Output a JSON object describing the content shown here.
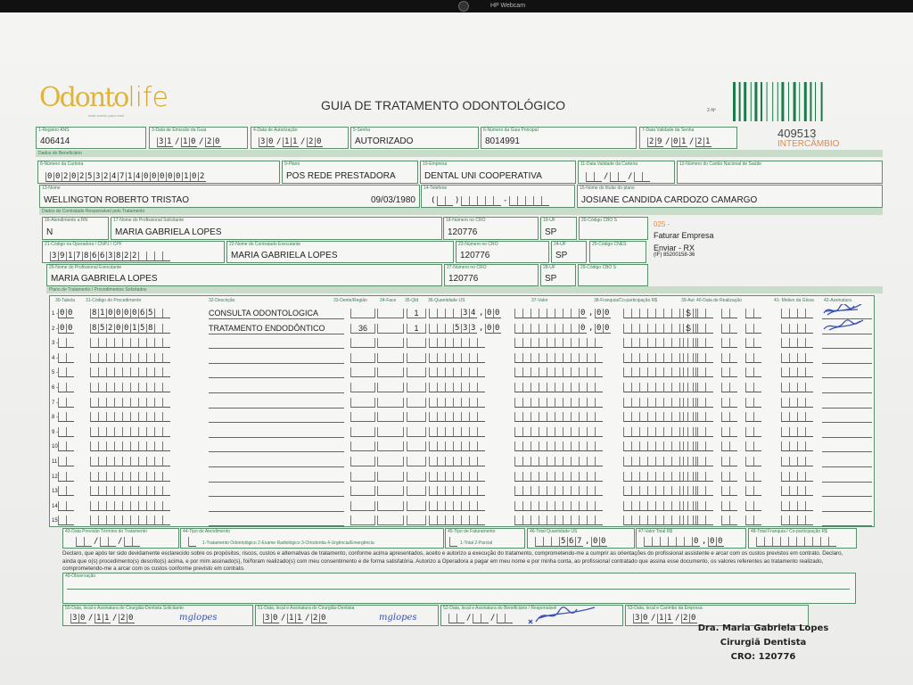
{
  "device": {
    "webcam_label": "HP Webcam"
  },
  "logo": {
    "text_main": "Odonto",
    "text_life": "life",
    "tagline": "mais sorriso para você"
  },
  "title": "GUIA DE TRATAMENTO ODONTOLÓGICO",
  "guide_number_label": "2-Nº",
  "guide_number": "409513",
  "intercambio": "INTERCÂMBIO",
  "colors": {
    "form_green": "#3b7a4f",
    "orange": "#e08a4a",
    "ink_blue": "#3a4fb5"
  },
  "fields": {
    "registro_ans": {
      "label": "1-Registro ANS",
      "value": "406414"
    },
    "data_emissao": {
      "label": "3-Data de Emissão da Guia",
      "value": "31/10/20"
    },
    "data_autorizacao": {
      "label": "4-Data de Autorização",
      "value": "30/11/20"
    },
    "senha": {
      "label": "5-Senha",
      "value": "AUTORIZADO"
    },
    "guia_principal": {
      "label": "6-Número da Guia Principal",
      "value": "8014991"
    },
    "validade_senha": {
      "label": "7-Data Validade da Senha",
      "value": "29/01/21"
    },
    "numero_carteira": {
      "label": "8-Número da Carteira",
      "value": "00202532471400000102"
    },
    "plano": {
      "label": "9-Plano",
      "value": "POS REDE PRESTADORA"
    },
    "empresa": {
      "label": "10-Empresa",
      "value": "DENTAL UNI  COOPERATIVA"
    },
    "validade_carteira": {
      "label": "11-Data Validade da Carteira",
      "value": "  /  /  "
    },
    "cns": {
      "label": "12-Número do Cartão Nacional de Saúde",
      "value": ""
    },
    "nome": {
      "label": "13-Nome",
      "value": "WELLINGTON ROBERTO TRISTAO",
      "birth": "09/03/1980"
    },
    "telefone": {
      "label": "14-Telefone",
      "value": "(  )     -     "
    },
    "titular": {
      "label": "15-Nome do titular do plano",
      "value": "JOSIANE CANDIDA CARDOZO CAMARGO"
    },
    "atendimento_rn": {
      "label": "16-Atendimento a RN",
      "value": "N"
    },
    "prof_solicitante": {
      "label": "17-Nome do Profissional Solicitante",
      "value": "MARIA GABRIELA LOPES"
    },
    "cro_18": {
      "label": "18-Número no CRO",
      "value": "120776"
    },
    "uf_19": {
      "label": "19-UF",
      "value": "SP"
    },
    "cbo_20": {
      "label": "20-Código CBO S",
      "value": ""
    },
    "codigo_operadora": {
      "label": "21-Código na Operadora / CNPJ / CPF",
      "value": "39178663822    "
    },
    "contratado_executante": {
      "label": "22-Nome do Contratado Executante",
      "value": "MARIA GABRIELA LOPES"
    },
    "cro_23": {
      "label": "23-Número no CRO",
      "value": "120776"
    },
    "uf_24": {
      "label": "24-UF",
      "value": "SP"
    },
    "cnes_25": {
      "label": "25-Código CNES",
      "value": ""
    },
    "prof_executante": {
      "label": "26-Nome do Profissional Executante",
      "value": "MARIA GABRIELA LOPES"
    },
    "cro_27": {
      "label": "27-Número no CRO",
      "value": "120776"
    },
    "uf_28": {
      "label": "28-UF",
      "value": "SP"
    },
    "cbo_29": {
      "label": "29-Código CBO S",
      "value": ""
    }
  },
  "bands": {
    "beneficiario": "Dados do Beneficiário",
    "contratado": "Dados do Contratado Responsável pelo Tratamento",
    "plano": "Plano de Tratamento / Procedimentos Solicitados"
  },
  "notes": {
    "code": "025 -",
    "line1": "Faturar Empresa",
    "line2": "Enviar - RX",
    "line3": "(IF) 85200158-36"
  },
  "table": {
    "headers": [
      "30-Tabela",
      "31-Código do Procedimento",
      "32-Descrição",
      "33-Dente/Região",
      "34-Face",
      "35-Qtd",
      "36-Quantidade US",
      "37-Valor",
      "38-Franquia/Co-participação R$",
      "39-Aut",
      "40-Data de Realização",
      "41- Motivo da Glosa",
      "42-Assinatura"
    ],
    "row_numbers": [
      "1 -",
      "2 -",
      "3 -",
      "4 -",
      "5 -",
      "6 -",
      "7 -",
      "8 -",
      "9 -",
      "10",
      "11",
      "12",
      "13",
      "14",
      "15"
    ],
    "rows": [
      {
        "tabela": "00",
        "codigo": "81000065",
        "descricao": "CONSULTA ODONTOLOGICA",
        "dente": "",
        "qtd": "1",
        "us": "34,00",
        "valor": "0,00",
        "aut": "S",
        "signed": true
      },
      {
        "tabela": "00",
        "codigo": "85200158",
        "descricao": "TRATAMENTO ENDODÔNTICO",
        "dente": "36",
        "qtd": "1",
        "us": "533,00",
        "valor": "0,00",
        "aut": "S",
        "signed": true
      }
    ]
  },
  "totals": {
    "previsao": {
      "label": "43-Data Previsão Término do Tratamento",
      "value": "  /  /  "
    },
    "tipo_atendimento": {
      "label": "44-Tipo de Atendimento",
      "options": "1-Tratamento Odontológico  2-Exame Radiológico  3-Ortodontia  4-Urgência/Emergência"
    },
    "tipo_faturamento": {
      "label": "45-Tipo de Faturamento",
      "options": "1-Total  2-Parcial"
    },
    "total_us": {
      "label": "46-Total Quantidade US",
      "value": "567,00"
    },
    "valor_total": {
      "label": "47-Valor Total R$",
      "value": "0,00"
    },
    "total_franquia": {
      "label": "48-Total Franquia / Co-participação R$",
      "value": ""
    }
  },
  "declaration": "Declaro, que após ter sido devidamente esclarecido sobre os propósitos, riscos, custos e alternativas de tratamento, conforme acima apresentados, aceito e autorizo a execução do tratamento, comprometendo-me a cumprir as orientações do profissional assistente e arcar com os custos previstos em contrato. Declaro, ainda que o(s) procedimento(s) descrito(s) acima, e por mim assinado(s), foi/foram realizado(s) com meu consentimento e de forma satisfatória. Autorizo a Operadora a pagar em meu nome e por minha conta, ao profissional contratado que assina esse documento, os valores referentes ao tratamento realizado, comprometendo-me a arcar com os custos conforme previsto em contrato.",
  "observacao": {
    "label": "49-Observação",
    "value": ""
  },
  "signatures": {
    "s50": {
      "label": "50-Data, local e Assinatura do Cirurgião-Dentista Solicitante",
      "date": "30/11/20",
      "sign": "mglopes"
    },
    "s51": {
      "label": "51-Data, local e Assinatura do Cirurgião-Dentista",
      "date": "30/11/20",
      "sign": "mglopes"
    },
    "s52": {
      "label": "52-Data, local e Assinatura do Beneficiário / Responsável",
      "date": "  /  /  "
    },
    "s53": {
      "label": "53-Data, local e Carimbo da Empresa",
      "date": "30/11/20"
    }
  },
  "stamp": {
    "line1": "Dra. Maria Gabriela Lopes",
    "line2": "Cirurgiã Dentista",
    "line3": "CRO: 120776"
  }
}
